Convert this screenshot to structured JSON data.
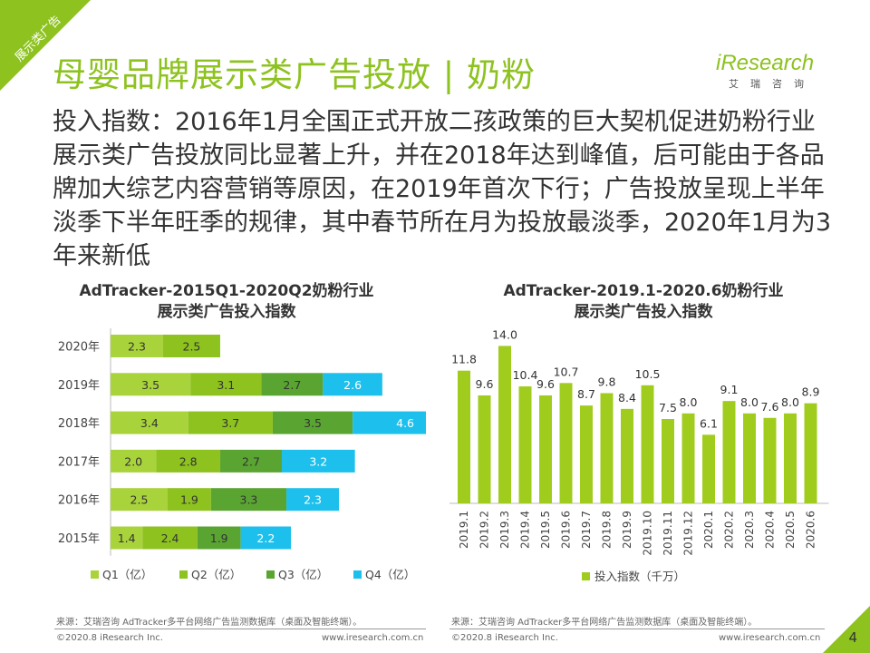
{
  "corner_tag": "展示类广告",
  "title": "母婴品牌展示类广告投放 | 奶粉",
  "logo": {
    "main": "iResearch",
    "sub": "艾瑞咨询"
  },
  "description": "投入指数：2016年1月全国正式开放二孩政策的巨大契机促进奶粉行业展示类广告投放同比显著上升，并在2018年达到峰值，后可能由于各品牌加大综艺内容营销等原因，在2019年首次下行；广告投放呈现上半年淡季下半年旺季的规律，其中春节所在月为投放最淡季，2020年1月为3年来新低",
  "left_chart_title": [
    "AdTracker-2015Q1-2020Q2奶粉行业",
    "展示类广告投入指数"
  ],
  "right_chart_title": [
    "AdTracker-2019.1-2020.6奶粉行业",
    "展示类广告投入指数"
  ],
  "colors": {
    "q1": "#a9d33b",
    "q2": "#8dc21f",
    "q3": "#5aa532",
    "q4": "#1dc0ec",
    "bar": "#a0cc1e",
    "brand": "#8dc21f"
  },
  "chart_data": [
    {
      "type": "bar",
      "orientation": "horizontal",
      "stacked": true,
      "title": "AdTracker-2015Q1-2020Q2奶粉行业展示类广告投入指数",
      "categories": [
        "2020年",
        "2019年",
        "2018年",
        "2017年",
        "2016年",
        "2015年"
      ],
      "series": [
        {
          "name": "Q1（亿）",
          "values": [
            2.3,
            3.5,
            3.4,
            2.0,
            2.5,
            1.4
          ]
        },
        {
          "name": "Q2（亿）",
          "values": [
            2.5,
            3.1,
            3.7,
            2.8,
            1.9,
            2.4
          ]
        },
        {
          "name": "Q3（亿）",
          "values": [
            null,
            2.7,
            3.5,
            2.7,
            3.3,
            1.9
          ]
        },
        {
          "name": "Q4（亿）",
          "values": [
            null,
            2.6,
            4.6,
            3.2,
            2.3,
            2.2
          ]
        }
      ],
      "legend": "bottom"
    },
    {
      "type": "bar",
      "title": "AdTracker-2019.1-2020.6奶粉行业展示类广告投入指数",
      "categories": [
        "2019.1",
        "2019.2",
        "2019.3",
        "2019.4",
        "2019.5",
        "2019.6",
        "2019.7",
        "2019.8",
        "2019.9",
        "2019.10",
        "2019.11",
        "2019.12",
        "2020.1",
        "2020.2",
        "2020.3",
        "2020.4",
        "2020.5",
        "2020.6"
      ],
      "series": [
        {
          "name": "投入指数（千万）",
          "values": [
            11.8,
            9.6,
            14.0,
            10.4,
            9.6,
            10.7,
            8.7,
            9.8,
            8.4,
            10.5,
            7.5,
            8.0,
            6.1,
            9.1,
            8.0,
            7.6,
            8.0,
            8.9
          ]
        }
      ],
      "ylim": [
        0,
        15
      ],
      "legend": "bottom"
    }
  ],
  "source_left": "来源：艾瑞咨询 AdTracker多平台网络广告监测数据库（桌面及智能终端）。",
  "source_right": "来源：艾瑞咨询 AdTracker多平台网络广告监测数据库（桌面及智能终端）。",
  "copyright": "©2020.8 iResearch Inc.",
  "website": "www.iresearch.com.cn",
  "page_number": "4"
}
